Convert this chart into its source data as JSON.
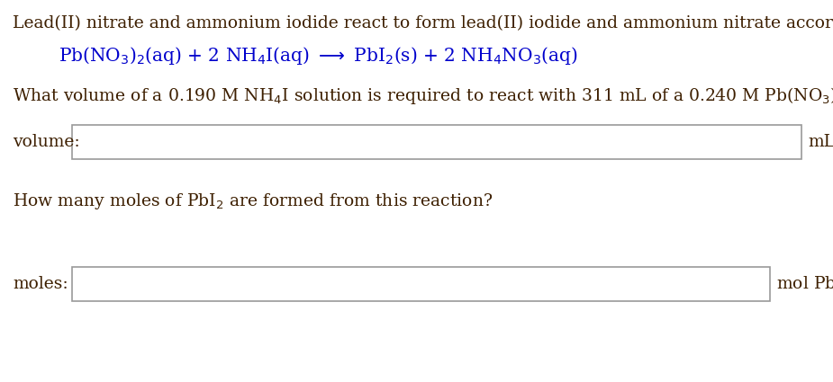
{
  "background_color": "#ffffff",
  "text_color": "#3d1f00",
  "equation_color": "#0000cc",
  "question_color": "#3d1f00",
  "label_color": "#3d1f00",
  "unit_color": "#3d1f00",
  "box_edge_color": "#999999",
  "line1": "Lead(II) nitrate and ammonium iodide react to form lead(II) iodide and ammonium nitrate according to the reaction",
  "label1": "volume:",
  "unit1": "mL",
  "label2": "moles:",
  "unit2": "mol PbI",
  "figsize": [
    9.25,
    4.25
  ],
  "dpi": 100
}
